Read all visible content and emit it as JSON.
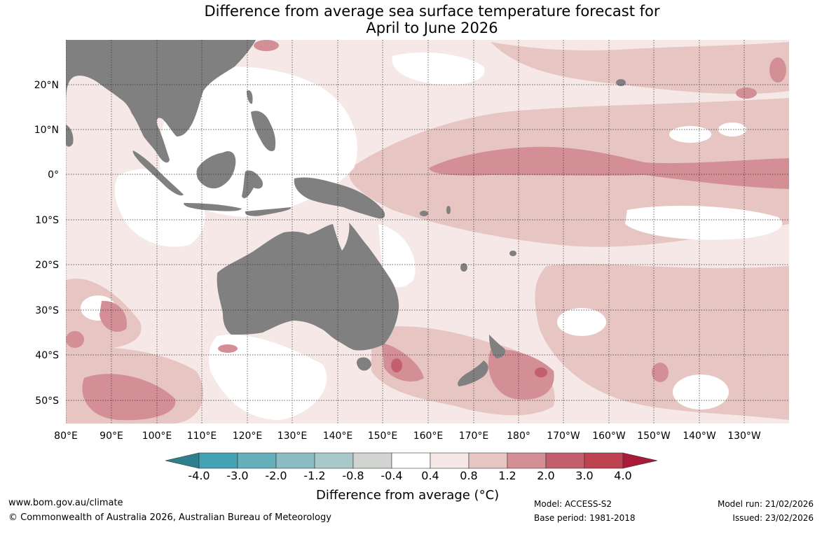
{
  "title": {
    "line1": "Difference from average sea surface temperature forecast for",
    "line2": "April to June 2026"
  },
  "map": {
    "lat_labels": [
      "20°N",
      "10°N",
      "0°",
      "10°S",
      "20°S",
      "30°S",
      "40°S",
      "50°S"
    ],
    "lon_labels": [
      "80°E",
      "90°E",
      "100°E",
      "110°E",
      "120°E",
      "130°E",
      "140°E",
      "150°E",
      "160°E",
      "170°E",
      "180°",
      "170°W",
      "160°W",
      "150°W",
      "140°W",
      "130°W"
    ]
  },
  "colorbar": {
    "title": "Difference from average (",
    "title_unit": "°C)",
    "tick_labels": [
      "-4.0",
      "-3.0",
      "-2.0",
      "-1.2",
      "-0.8",
      "-0.4",
      "0.4",
      "0.8",
      "1.2",
      "2.0",
      "3.0",
      "4.0"
    ],
    "colors": [
      "#2f7f8c",
      "#44a2b2",
      "#67aebb",
      "#8cbcc3",
      "#a9c8ca",
      "#d2d4d2",
      "#ffffff",
      "#f5e8e6",
      "#e6c5c2",
      "#d48e96",
      "#c4606d",
      "#be4250",
      "#a81a38"
    ],
    "land_color": "#808080"
  },
  "footer": {
    "website": "www.bom.gov.au/climate",
    "copyright": "© Commonwealth of Australia 2026, Australian Bureau of Meteorology",
    "model": "Model: ACCESS-S2",
    "base_period": "Base period: 1981-2018",
    "model_run": "Model run: 21/02/2026",
    "issued": "Issued: 23/02/2026"
  }
}
